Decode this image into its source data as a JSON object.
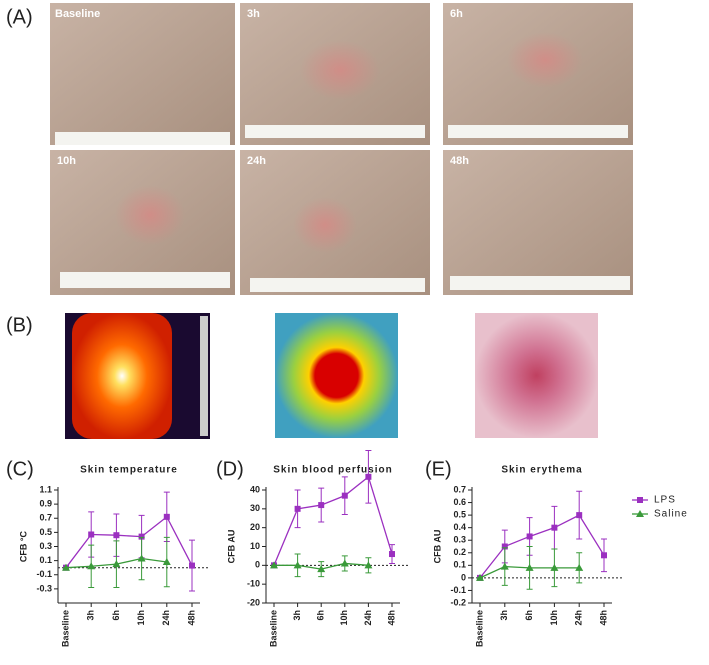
{
  "panel_a": {
    "label": "(A)",
    "photos": [
      "Baseline",
      "3h",
      "6h",
      "10h",
      "24h",
      "48h"
    ]
  },
  "panel_b": {
    "label": "(B)"
  },
  "chart_data": [
    {
      "type": "line",
      "panel_label": "(C)",
      "title": "Skin temperature",
      "y_label": "CFB °C",
      "categories": [
        "Baseline",
        "3h",
        "6h",
        "10h",
        "24h",
        "48h"
      ],
      "ylim": [
        -0.5,
        1.1
      ],
      "yticks": [
        -0.3,
        -0.1,
        0.1,
        0.3,
        0.5,
        0.7,
        0.9,
        1.1
      ],
      "series": [
        {
          "color": "#9b30c0",
          "marker": "square",
          "values": [
            0,
            0.47,
            0.46,
            0.44,
            0.72,
            0.03
          ],
          "errors": [
            0,
            0.32,
            0.3,
            0.3,
            0.35,
            0.36
          ]
        },
        {
          "color": "#3a9a3a",
          "marker": "triangle",
          "values": [
            0,
            0.02,
            0.05,
            0.13,
            0.08,
            null
          ],
          "errors": [
            0,
            0.3,
            0.33,
            0.3,
            0.35,
            null
          ]
        }
      ]
    },
    {
      "type": "line",
      "panel_label": "(D)",
      "title": "Skin blood perfusion",
      "y_label": "CFB AU",
      "categories": [
        "Baseline",
        "3h",
        "6h",
        "10h",
        "24h",
        "48h"
      ],
      "ylim": [
        -20,
        40
      ],
      "yticks": [
        -20,
        -10,
        0,
        10,
        20,
        30,
        40
      ],
      "series": [
        {
          "color": "#9b30c0",
          "marker": "square",
          "values": [
            0,
            30,
            32,
            37,
            47,
            6
          ],
          "errors": [
            0,
            10,
            9,
            10,
            14,
            5
          ]
        },
        {
          "color": "#3a9a3a",
          "marker": "triangle",
          "values": [
            0,
            0,
            -2,
            1,
            0,
            null
          ],
          "errors": [
            0,
            6,
            4,
            4,
            4,
            null
          ]
        }
      ]
    },
    {
      "type": "line",
      "panel_label": "(E)",
      "title": "Skin erythema",
      "y_label": "CFB AU",
      "categories": [
        "Baseline",
        "3h",
        "6h",
        "10h",
        "24h",
        "48h"
      ],
      "ylim": [
        -0.2,
        0.7
      ],
      "yticks": [
        -0.2,
        -0.1,
        0,
        0.1,
        0.2,
        0.3,
        0.4,
        0.5,
        0.6,
        0.7
      ],
      "legend": "right",
      "series": [
        {
          "name": "LPS",
          "color": "#9b30c0",
          "marker": "square",
          "values": [
            0,
            0.25,
            0.33,
            0.4,
            0.5,
            0.18
          ],
          "errors": [
            0,
            0.13,
            0.15,
            0.17,
            0.19,
            0.13
          ]
        },
        {
          "name": "Saline",
          "color": "#3a9a3a",
          "marker": "triangle",
          "values": [
            0,
            0.09,
            0.08,
            0.08,
            0.08,
            null
          ],
          "errors": [
            0,
            0.15,
            0.17,
            0.15,
            0.12,
            null
          ]
        }
      ]
    }
  ]
}
